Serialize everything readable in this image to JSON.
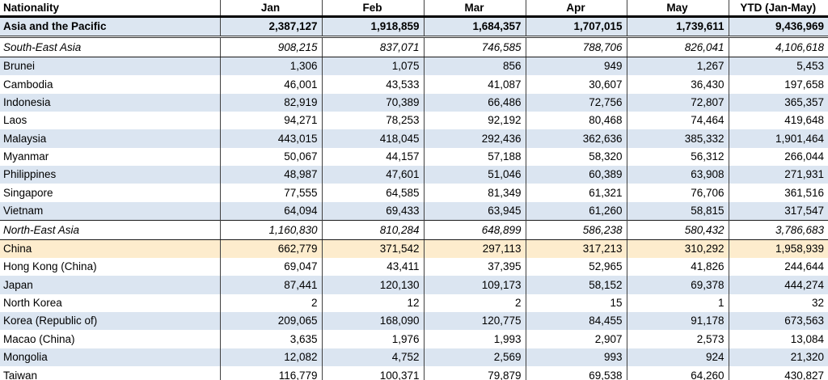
{
  "chart_data": {
    "type": "table",
    "columns": [
      "Nationality",
      "Jan",
      "Feb",
      "Mar",
      "Apr",
      "May",
      "YTD (Jan-May)"
    ],
    "rows": [
      {
        "label": "Asia and the Pacific",
        "style": "total",
        "values": [
          "2,387,127",
          "1,918,859",
          "1,684,357",
          "1,707,015",
          "1,739,611",
          "9,436,969"
        ]
      },
      {
        "label": "South-East Asia",
        "style": "subtotal",
        "values": [
          "908,215",
          "837,071",
          "746,585",
          "788,706",
          "826,041",
          "4,106,618"
        ]
      },
      {
        "label": "Brunei",
        "style": "band",
        "values": [
          "1,306",
          "1,075",
          "856",
          "949",
          "1,267",
          "5,453"
        ]
      },
      {
        "label": "Cambodia",
        "style": "plain",
        "values": [
          "46,001",
          "43,533",
          "41,087",
          "30,607",
          "36,430",
          "197,658"
        ]
      },
      {
        "label": "Indonesia",
        "style": "band",
        "values": [
          "82,919",
          "70,389",
          "66,486",
          "72,756",
          "72,807",
          "365,357"
        ]
      },
      {
        "label": "Laos",
        "style": "plain",
        "values": [
          "94,271",
          "78,253",
          "92,192",
          "80,468",
          "74,464",
          "419,648"
        ]
      },
      {
        "label": "Malaysia",
        "style": "band",
        "values": [
          "443,015",
          "418,045",
          "292,436",
          "362,636",
          "385,332",
          "1,901,464"
        ]
      },
      {
        "label": "Myanmar",
        "style": "plain",
        "values": [
          "50,067",
          "44,157",
          "57,188",
          "58,320",
          "56,312",
          "266,044"
        ]
      },
      {
        "label": "Philippines",
        "style": "band",
        "values": [
          "48,987",
          "47,601",
          "51,046",
          "60,389",
          "63,908",
          "271,931"
        ]
      },
      {
        "label": "Singapore",
        "style": "plain",
        "values": [
          "77,555",
          "64,585",
          "81,349",
          "61,321",
          "76,706",
          "361,516"
        ]
      },
      {
        "label": "Vietnam",
        "style": "band",
        "values": [
          "64,094",
          "69,433",
          "63,945",
          "61,260",
          "58,815",
          "317,547"
        ]
      },
      {
        "label": "North-East Asia",
        "style": "subtotal",
        "values": [
          "1,160,830",
          "810,284",
          "648,899",
          "586,238",
          "580,432",
          "3,786,683"
        ]
      },
      {
        "label": "China",
        "style": "highlight",
        "values": [
          "662,779",
          "371,542",
          "297,113",
          "317,213",
          "310,292",
          "1,958,939"
        ]
      },
      {
        "label": "Hong Kong (China)",
        "style": "plain",
        "values": [
          "69,047",
          "43,411",
          "37,395",
          "52,965",
          "41,826",
          "244,644"
        ]
      },
      {
        "label": "Japan",
        "style": "band",
        "values": [
          "87,441",
          "120,130",
          "109,173",
          "58,152",
          "69,378",
          "444,274"
        ]
      },
      {
        "label": "North Korea",
        "style": "plain",
        "values": [
          "2",
          "12",
          "2",
          "15",
          "1",
          "32"
        ]
      },
      {
        "label": "Korea (Republic of)",
        "style": "band",
        "values": [
          "209,065",
          "168,090",
          "120,775",
          "84,455",
          "91,178",
          "673,563"
        ]
      },
      {
        "label": "Macao (China)",
        "style": "plain",
        "values": [
          "3,635",
          "1,976",
          "1,993",
          "2,907",
          "2,573",
          "13,084"
        ]
      },
      {
        "label": "Mongolia",
        "style": "band",
        "values": [
          "12,082",
          "4,752",
          "2,569",
          "993",
          "924",
          "21,320"
        ]
      },
      {
        "label": "Taiwan",
        "style": "plain",
        "values": [
          "116,779",
          "100,371",
          "79,879",
          "69,538",
          "64,260",
          "430,827"
        ]
      }
    ]
  },
  "colors": {
    "band_blue": "#dbe5f1",
    "total_row_blue": "#dce6f1",
    "highlight_yellow": "#fdeccd",
    "grid_border": "#404040",
    "header_rule": "#000000"
  }
}
